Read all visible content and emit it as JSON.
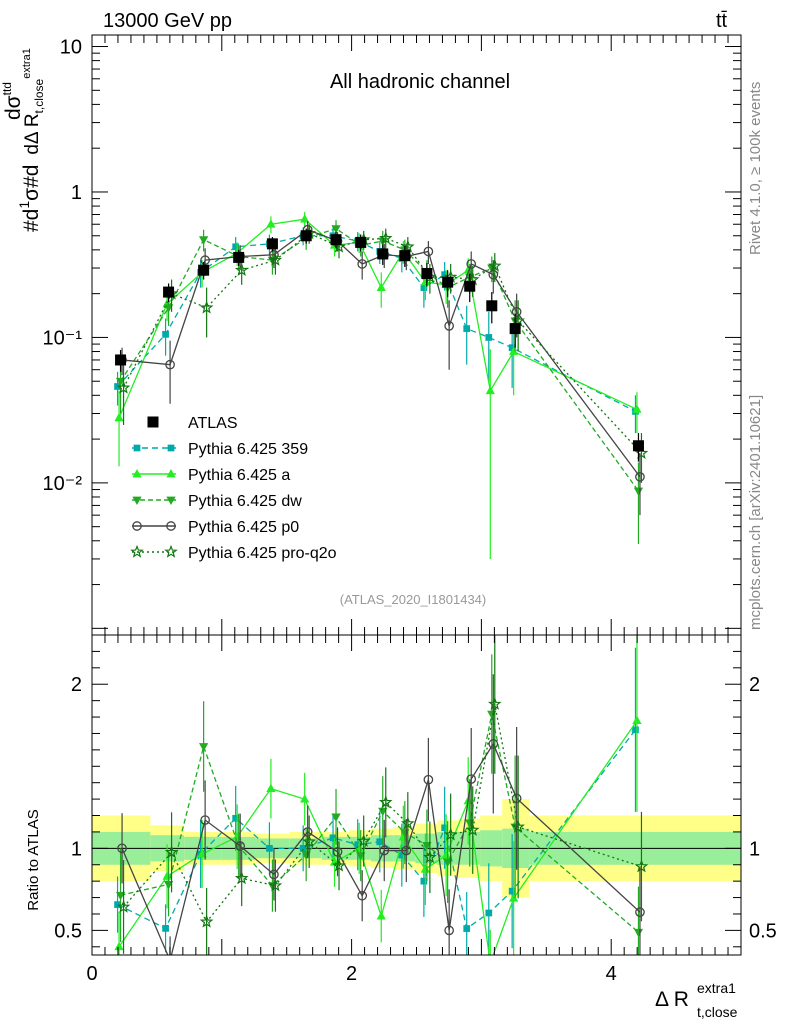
{
  "header": {
    "energy_label": "13000 GeV pp",
    "process_label": "tt̄"
  },
  "side_labels": {
    "rivet": "Rivet 4.1.0, ≥ 100k events",
    "mcplots": "mcplots.cern.ch [arXiv:2401.10621]"
  },
  "chart_data": {
    "type": "line",
    "title": "All hadronic channel",
    "analysis_tag": "(ATLAS_2020_I1801434)",
    "ylabel_main": "#d1/σ#d dσ^ttd / dΔ R_t,close^extra1",
    "ylabel_ratio": "Ratio to ATLAS",
    "xlabel": "Δ R",
    "xlabel_sup": "extra1",
    "xlabel_sub": "t,close",
    "xlim": [
      0,
      5
    ],
    "ylim_main": [
      0.0009,
      12
    ],
    "ylim_ratio": [
      0.35,
      2.3
    ],
    "x_ticks": [
      "0",
      "2",
      "4"
    ],
    "y_ticks_main": [
      "10",
      "1",
      "10⁻¹",
      "10⁻²"
    ],
    "y_ticks_ratio": [
      "2",
      "1",
      "0.5"
    ],
    "x": [
      0.22,
      0.59,
      0.86,
      1.13,
      1.39,
      1.65,
      1.88,
      2.07,
      2.24,
      2.41,
      2.58,
      2.74,
      2.91,
      3.08,
      3.26,
      4.21
    ],
    "x_bins": [
      [
        0.0,
        0.45
      ],
      [
        0.45,
        0.71
      ],
      [
        0.71,
        1.0
      ],
      [
        1.0,
        1.26
      ],
      [
        1.26,
        1.52
      ],
      [
        1.52,
        1.77
      ],
      [
        1.77,
        1.98
      ],
      [
        1.98,
        2.15
      ],
      [
        2.15,
        2.32
      ],
      [
        2.32,
        2.49
      ],
      [
        2.49,
        2.66
      ],
      [
        2.66,
        2.82
      ],
      [
        2.82,
        2.99
      ],
      [
        2.99,
        3.16
      ],
      [
        3.16,
        3.37
      ],
      [
        3.37,
        5.0
      ]
    ],
    "data_values": [
      0.07,
      0.205,
      0.29,
      0.355,
      0.44,
      0.5,
      0.47,
      0.45,
      0.375,
      0.365,
      0.275,
      0.24,
      0.225,
      0.165,
      0.115,
      0.018
    ],
    "data_errors": [
      0.012,
      0.03,
      0.04,
      0.045,
      0.05,
      0.06,
      0.06,
      0.06,
      0.06,
      0.06,
      0.05,
      0.05,
      0.05,
      0.04,
      0.03,
      0.004
    ],
    "band_stat": [
      0.1,
      0.08,
      0.07,
      0.07,
      0.06,
      0.06,
      0.07,
      0.07,
      0.08,
      0.08,
      0.09,
      0.1,
      0.1,
      0.11,
      0.12,
      0.1
    ],
    "band_total": [
      0.2,
      0.14,
      0.1,
      0.1,
      0.09,
      0.1,
      0.1,
      0.11,
      0.12,
      0.13,
      0.15,
      0.17,
      0.18,
      0.2,
      0.3,
      0.2
    ],
    "series": [
      {
        "name": "ATLAS",
        "role": "data"
      },
      {
        "name": "Pythia 6.425 359",
        "color": "#00aaaa",
        "marker": "square",
        "dash": "6,4",
        "values": [
          0.046,
          0.105,
          0.28,
          0.42,
          0.44,
          0.5,
          0.5,
          0.46,
          0.39,
          0.35,
          0.22,
          0.27,
          0.115,
          0.1,
          0.085,
          0.031
        ],
        "errors": [
          0.012,
          0.03,
          0.06,
          0.07,
          0.07,
          0.07,
          0.07,
          0.07,
          0.07,
          0.07,
          0.06,
          0.06,
          0.05,
          0.05,
          0.04,
          0.009
        ]
      },
      {
        "name": "Pythia 6.425 a",
        "color": "#22ee22",
        "marker": "triangle-up",
        "dash": "",
        "values": [
          0.028,
          0.17,
          0.28,
          0.38,
          0.6,
          0.65,
          0.43,
          0.45,
          0.22,
          0.39,
          0.24,
          0.23,
          0.29,
          0.043,
          0.08,
          0.032
        ],
        "errors": [
          0.015,
          0.04,
          0.06,
          0.07,
          0.08,
          0.08,
          0.07,
          0.07,
          0.06,
          0.07,
          0.06,
          0.06,
          0.06,
          0.04,
          0.04,
          0.01
        ]
      },
      {
        "name": "Pythia 6.425 dw",
        "color": "#22aa22",
        "marker": "triangle-down",
        "dash": "5,3",
        "values": [
          0.05,
          0.16,
          0.47,
          0.36,
          0.34,
          0.48,
          0.56,
          0.43,
          0.46,
          0.4,
          0.28,
          0.22,
          0.26,
          0.3,
          0.13,
          0.0088
        ],
        "errors": [
          0.02,
          0.04,
          0.08,
          0.07,
          0.07,
          0.08,
          0.08,
          0.07,
          0.08,
          0.07,
          0.06,
          0.06,
          0.06,
          0.06,
          0.05,
          0.005
        ]
      },
      {
        "name": "Pythia 6.425 p0",
        "color": "#444444",
        "marker": "circle-open",
        "dash": "",
        "values": [
          0.07,
          0.065,
          0.34,
          0.36,
          0.37,
          0.55,
          0.46,
          0.32,
          0.37,
          0.36,
          0.39,
          0.12,
          0.32,
          0.27,
          0.15,
          0.011
        ],
        "errors": [
          0.015,
          0.03,
          0.07,
          0.07,
          0.07,
          0.08,
          0.07,
          0.07,
          0.07,
          0.07,
          0.07,
          0.06,
          0.07,
          0.07,
          0.05,
          0.005
        ]
      },
      {
        "name": "Pythia 6.425 pro-q2o",
        "color": "#117711",
        "marker": "star",
        "dash": "2,3",
        "values": [
          0.045,
          0.2,
          0.16,
          0.29,
          0.34,
          0.52,
          0.42,
          0.47,
          0.48,
          0.42,
          0.26,
          0.26,
          0.25,
          0.31,
          0.13,
          0.016
        ],
        "errors": [
          0.02,
          0.05,
          0.06,
          0.06,
          0.07,
          0.08,
          0.07,
          0.07,
          0.08,
          0.07,
          0.06,
          0.06,
          0.06,
          0.07,
          0.05,
          0.006
        ]
      }
    ],
    "legend_position": "lower-left"
  }
}
